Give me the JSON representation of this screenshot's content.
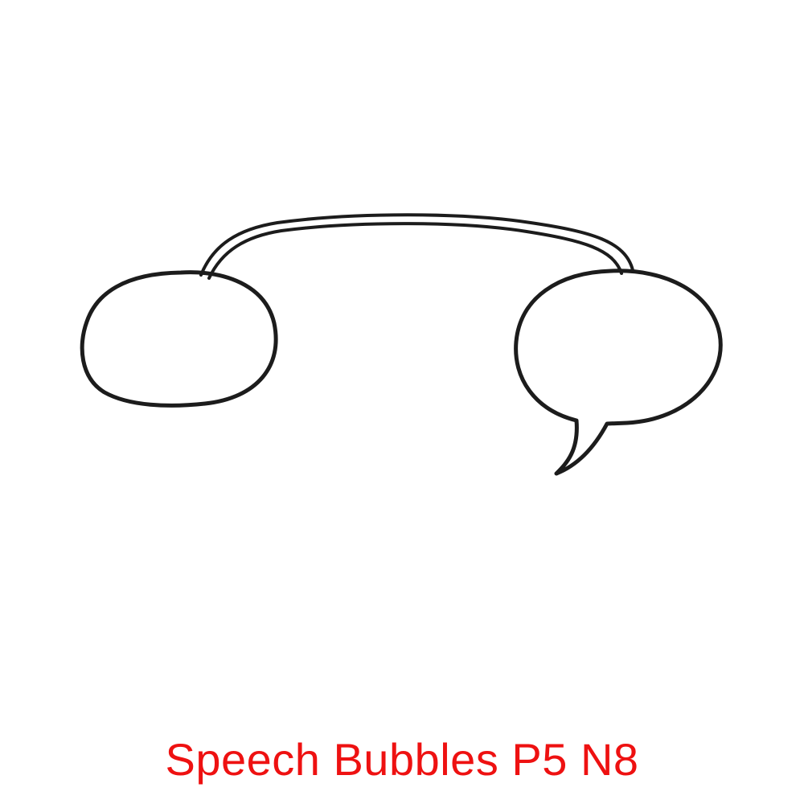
{
  "caption": {
    "text": "Speech Bubbles P5 N8",
    "color": "#ee1111"
  },
  "illustration": {
    "description_icon": "linked-speech-bubbles-icon",
    "stroke_color": "#1c1c1c",
    "fill_color": "#ffffff",
    "bubbles": [
      {
        "name": "left-speech-bubble",
        "has_tail": false
      },
      {
        "name": "right-speech-bubble",
        "has_tail": true
      }
    ],
    "connector": "double-line-arc"
  }
}
